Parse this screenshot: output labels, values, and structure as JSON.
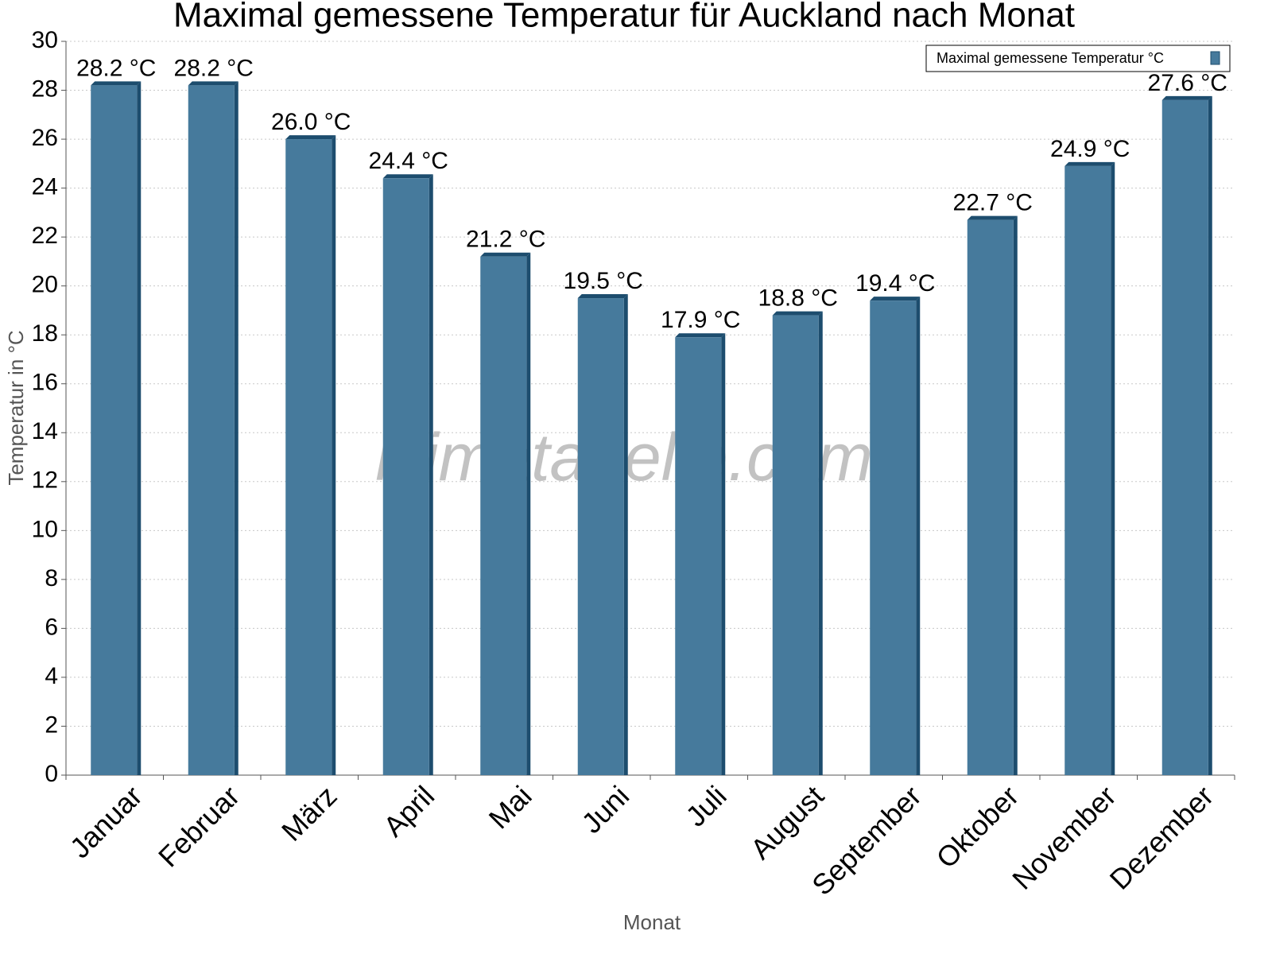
{
  "chart_data": {
    "type": "bar",
    "title": "Maximal gemessene Temperatur für Auckland nach Monat",
    "x_label": "Monat",
    "y_label": "Temperatur in °C",
    "watermark": "klimatabelle.com",
    "categories": [
      "Januar",
      "Februar",
      "März",
      "April",
      "Mai",
      "Juni",
      "Juli",
      "August",
      "September",
      "Oktober",
      "November",
      "Dezember"
    ],
    "series": [
      {
        "name": "Maximal gemessene Temperatur °C",
        "color": "#467a9c",
        "values": [
          28.2,
          28.2,
          26.0,
          24.4,
          21.2,
          19.5,
          17.9,
          18.8,
          19.4,
          22.7,
          24.9,
          27.6
        ],
        "value_labels": [
          "28.2 °C",
          "28.2 °C",
          "26.0 °C",
          "24.4 °C",
          "21.2 °C",
          "19.5 °C",
          "17.9 °C",
          "18.8 °C",
          "19.4 °C",
          "22.7 °C",
          "24.9 °C",
          "27.6 °C"
        ]
      }
    ],
    "ylim": [
      0,
      30
    ],
    "yticks": [
      0,
      2,
      4,
      6,
      8,
      10,
      12,
      14,
      16,
      18,
      20,
      22,
      24,
      26,
      28,
      30
    ],
    "grid": true,
    "legend": "top-right"
  }
}
